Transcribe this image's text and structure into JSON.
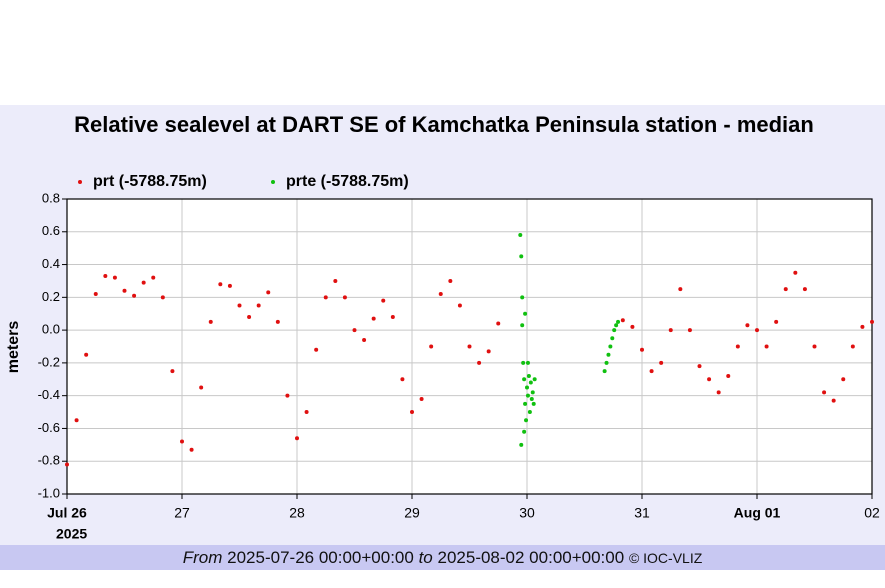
{
  "chart_data": {
    "type": "scatter",
    "title": "Relative sealevel at DART SE of Kamchatka Peninsula station - median",
    "y_label": "meters",
    "xlim": [
      0,
      168
    ],
    "xticks": [
      {
        "value": 0,
        "label": "Jul 26"
      },
      {
        "value": 24,
        "label": "27"
      },
      {
        "value": 48,
        "label": "28"
      },
      {
        "value": 72,
        "label": "29"
      },
      {
        "value": 96,
        "label": "30"
      },
      {
        "value": 120,
        "label": "31"
      },
      {
        "value": 144,
        "label": "Aug 01"
      },
      {
        "value": 168,
        "label": "02"
      }
    ],
    "x_year_label": "2025",
    "ylim": [
      -1,
      0.8
    ],
    "yticks": [
      {
        "value": -1,
        "label": "-1.0"
      },
      -0.8,
      -0.6,
      -0.4,
      -0.2,
      {
        "value": 0,
        "label": "0.0"
      },
      0.2,
      0.4,
      0.6,
      0.8
    ],
    "grid": true,
    "legend": "top-left",
    "series": [
      {
        "name": "prt (-5788.75m)",
        "color": "#e01010",
        "x": [
          0,
          2,
          4,
          6,
          8,
          10,
          12,
          14,
          16,
          18,
          20,
          22,
          24,
          26,
          28,
          30,
          32,
          34,
          36,
          38,
          40,
          42,
          44,
          46,
          48,
          50,
          52,
          54,
          56,
          58,
          60,
          62,
          64,
          66,
          68,
          70,
          72,
          74,
          76,
          78,
          80,
          82,
          84,
          86,
          88,
          90,
          116,
          118,
          120,
          122,
          124,
          126,
          128,
          130,
          132,
          134,
          136,
          138,
          140,
          142,
          144,
          146,
          148,
          150,
          152,
          154,
          156,
          158,
          160,
          162,
          164,
          166,
          168
        ],
        "values": [
          -0.82,
          -0.55,
          -0.15,
          0.22,
          0.33,
          0.32,
          0.24,
          0.21,
          0.29,
          0.32,
          0.2,
          -0.25,
          -0.68,
          -0.73,
          -0.35,
          0.05,
          0.28,
          0.27,
          0.15,
          0.08,
          0.15,
          0.23,
          0.05,
          -0.4,
          -0.66,
          -0.5,
          -0.12,
          0.2,
          0.3,
          0.2,
          0.0,
          -0.06,
          0.07,
          0.18,
          0.08,
          -0.3,
          -0.5,
          -0.42,
          -0.1,
          0.22,
          0.3,
          0.15,
          -0.1,
          -0.2,
          -0.13,
          0.04,
          0.06,
          0.02,
          -0.12,
          -0.25,
          -0.2,
          0.0,
          0.25,
          0.0,
          -0.22,
          -0.3,
          -0.38,
          -0.28,
          -0.1,
          0.03,
          0.0,
          -0.1,
          0.05,
          0.25,
          0.35,
          0.25,
          -0.1,
          -0.38,
          -0.43,
          -0.3,
          -0.1,
          0.02,
          0.05
        ]
      },
      {
        "name": "prte (-5788.75m)",
        "color": "#10c010",
        "x": [
          94.6,
          94.8,
          94.8,
          95.0,
          95.0,
          95.2,
          95.4,
          95.4,
          95.6,
          95.6,
          95.8,
          96.0,
          96.2,
          96.2,
          96.4,
          96.6,
          96.8,
          97.0,
          97.2,
          97.4,
          97.6,
          112.2,
          112.6,
          113.0,
          113.4,
          113.8,
          114.2,
          114.6,
          115.0
        ],
        "values": [
          0.58,
          0.45,
          -0.7,
          0.2,
          0.03,
          -0.2,
          -0.3,
          -0.62,
          -0.45,
          0.1,
          -0.55,
          -0.35,
          -0.4,
          -0.2,
          -0.28,
          -0.5,
          -0.32,
          -0.42,
          -0.38,
          -0.45,
          -0.3,
          -0.25,
          -0.2,
          -0.15,
          -0.1,
          -0.05,
          0.0,
          0.03,
          0.05
        ]
      }
    ]
  },
  "footer": {
    "from_word": "From",
    "start": "2025-07-26 00:00+00:00",
    "to_word": "to",
    "end": "2025-08-02 00:00+00:00",
    "credit": "© IOC-VLIZ"
  }
}
